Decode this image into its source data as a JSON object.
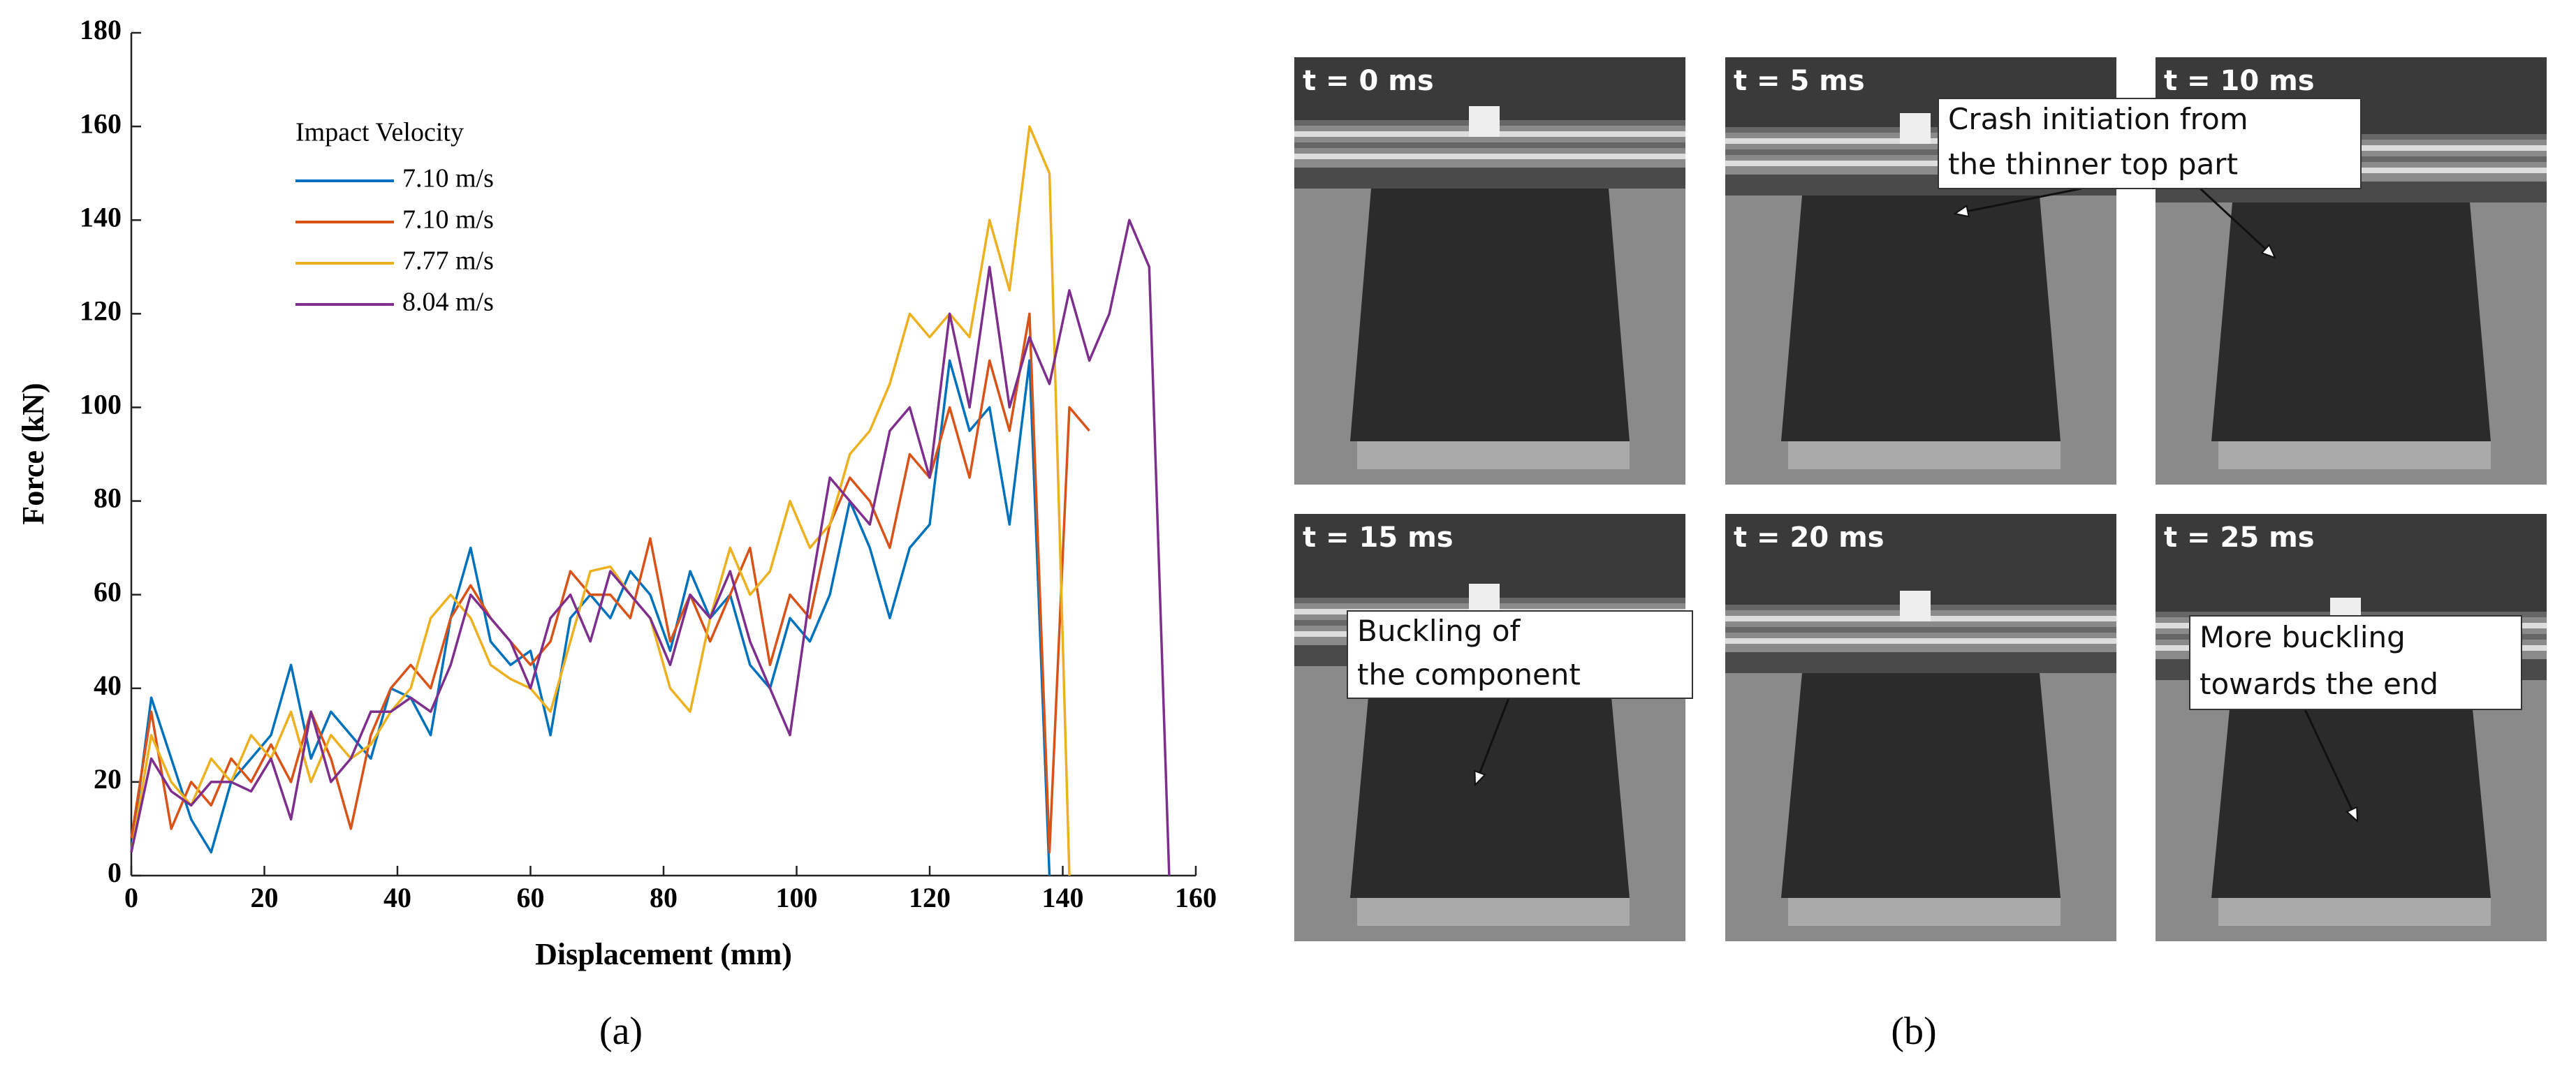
{
  "chart_data": {
    "type": "line",
    "xlabel": "Displacement (mm)",
    "ylabel": "Force (kN)",
    "legend_title": "Impact Velocity",
    "x": [
      0,
      3,
      6,
      9,
      12,
      15,
      18,
      21,
      24,
      27,
      30,
      33,
      36,
      39,
      42,
      45,
      48,
      51,
      54,
      57,
      60,
      63,
      66,
      69,
      72,
      75,
      78,
      81,
      84,
      87,
      90,
      93,
      96,
      99,
      102,
      105,
      108,
      111,
      114,
      117,
      120,
      123,
      126,
      129,
      132,
      135,
      138,
      141,
      144,
      147,
      150,
      153,
      156
    ],
    "series": [
      {
        "name": "7.10 m/s",
        "color": "#0072bd",
        "values": [
          5,
          38,
          25,
          12,
          5,
          20,
          25,
          30,
          45,
          25,
          35,
          30,
          25,
          40,
          38,
          30,
          55,
          70,
          50,
          45,
          48,
          30,
          55,
          60,
          55,
          65,
          60,
          48,
          65,
          55,
          60,
          45,
          40,
          55,
          50,
          60,
          80,
          70,
          55,
          70,
          75,
          110,
          95,
          100,
          75,
          110,
          0,
          null,
          null,
          null,
          null,
          null,
          null
        ]
      },
      {
        "name": "7.10 m/s",
        "color": "#d95319",
        "values": [
          8,
          35,
          10,
          20,
          15,
          25,
          20,
          28,
          20,
          35,
          25,
          10,
          30,
          40,
          45,
          40,
          55,
          62,
          55,
          50,
          45,
          50,
          65,
          60,
          60,
          55,
          72,
          50,
          60,
          50,
          60,
          70,
          45,
          60,
          55,
          75,
          85,
          80,
          70,
          90,
          85,
          100,
          85,
          110,
          95,
          120,
          5,
          100,
          95,
          null,
          null,
          null,
          null
        ]
      },
      {
        "name": "7.77 m/s",
        "color": "#edb120",
        "values": [
          5,
          30,
          20,
          15,
          25,
          20,
          30,
          25,
          35,
          20,
          30,
          25,
          28,
          35,
          40,
          55,
          60,
          55,
          45,
          42,
          40,
          35,
          50,
          65,
          66,
          60,
          55,
          40,
          35,
          55,
          70,
          60,
          65,
          80,
          70,
          75,
          90,
          95,
          105,
          120,
          115,
          120,
          115,
          140,
          125,
          160,
          150,
          0,
          null,
          null,
          null,
          null,
          null
        ]
      },
      {
        "name": "8.04 m/s",
        "color": "#7e2f8e",
        "values": [
          5,
          25,
          18,
          15,
          20,
          20,
          18,
          25,
          12,
          35,
          20,
          25,
          35,
          35,
          38,
          35,
          45,
          60,
          55,
          50,
          40,
          55,
          60,
          50,
          65,
          60,
          55,
          45,
          60,
          55,
          65,
          50,
          40,
          30,
          60,
          85,
          80,
          75,
          95,
          100,
          85,
          120,
          100,
          130,
          100,
          115,
          105,
          125,
          110,
          120,
          140,
          130,
          0
        ]
      }
    ],
    "xlim": [
      0,
      160
    ],
    "ylim": [
      0,
      180
    ],
    "xticks": [
      0,
      20,
      40,
      60,
      80,
      100,
      120,
      140,
      160
    ],
    "yticks": [
      0,
      20,
      40,
      60,
      80,
      100,
      120,
      140,
      160,
      180
    ],
    "grid": false
  },
  "captions": [
    "(a)",
    "(b)"
  ],
  "frames": [
    "t = 0 ms",
    "t = 5 ms",
    "t = 10 ms",
    "t = 15 ms",
    "t = 20 ms",
    "t = 25 ms"
  ],
  "annotations": [
    {
      "lines": [
        "Crash initiation from",
        "the thinner top part"
      ]
    },
    {
      "lines": [
        "Buckling of",
        "the component"
      ]
    },
    {
      "lines": [
        "More buckling",
        "towards the end"
      ]
    }
  ]
}
